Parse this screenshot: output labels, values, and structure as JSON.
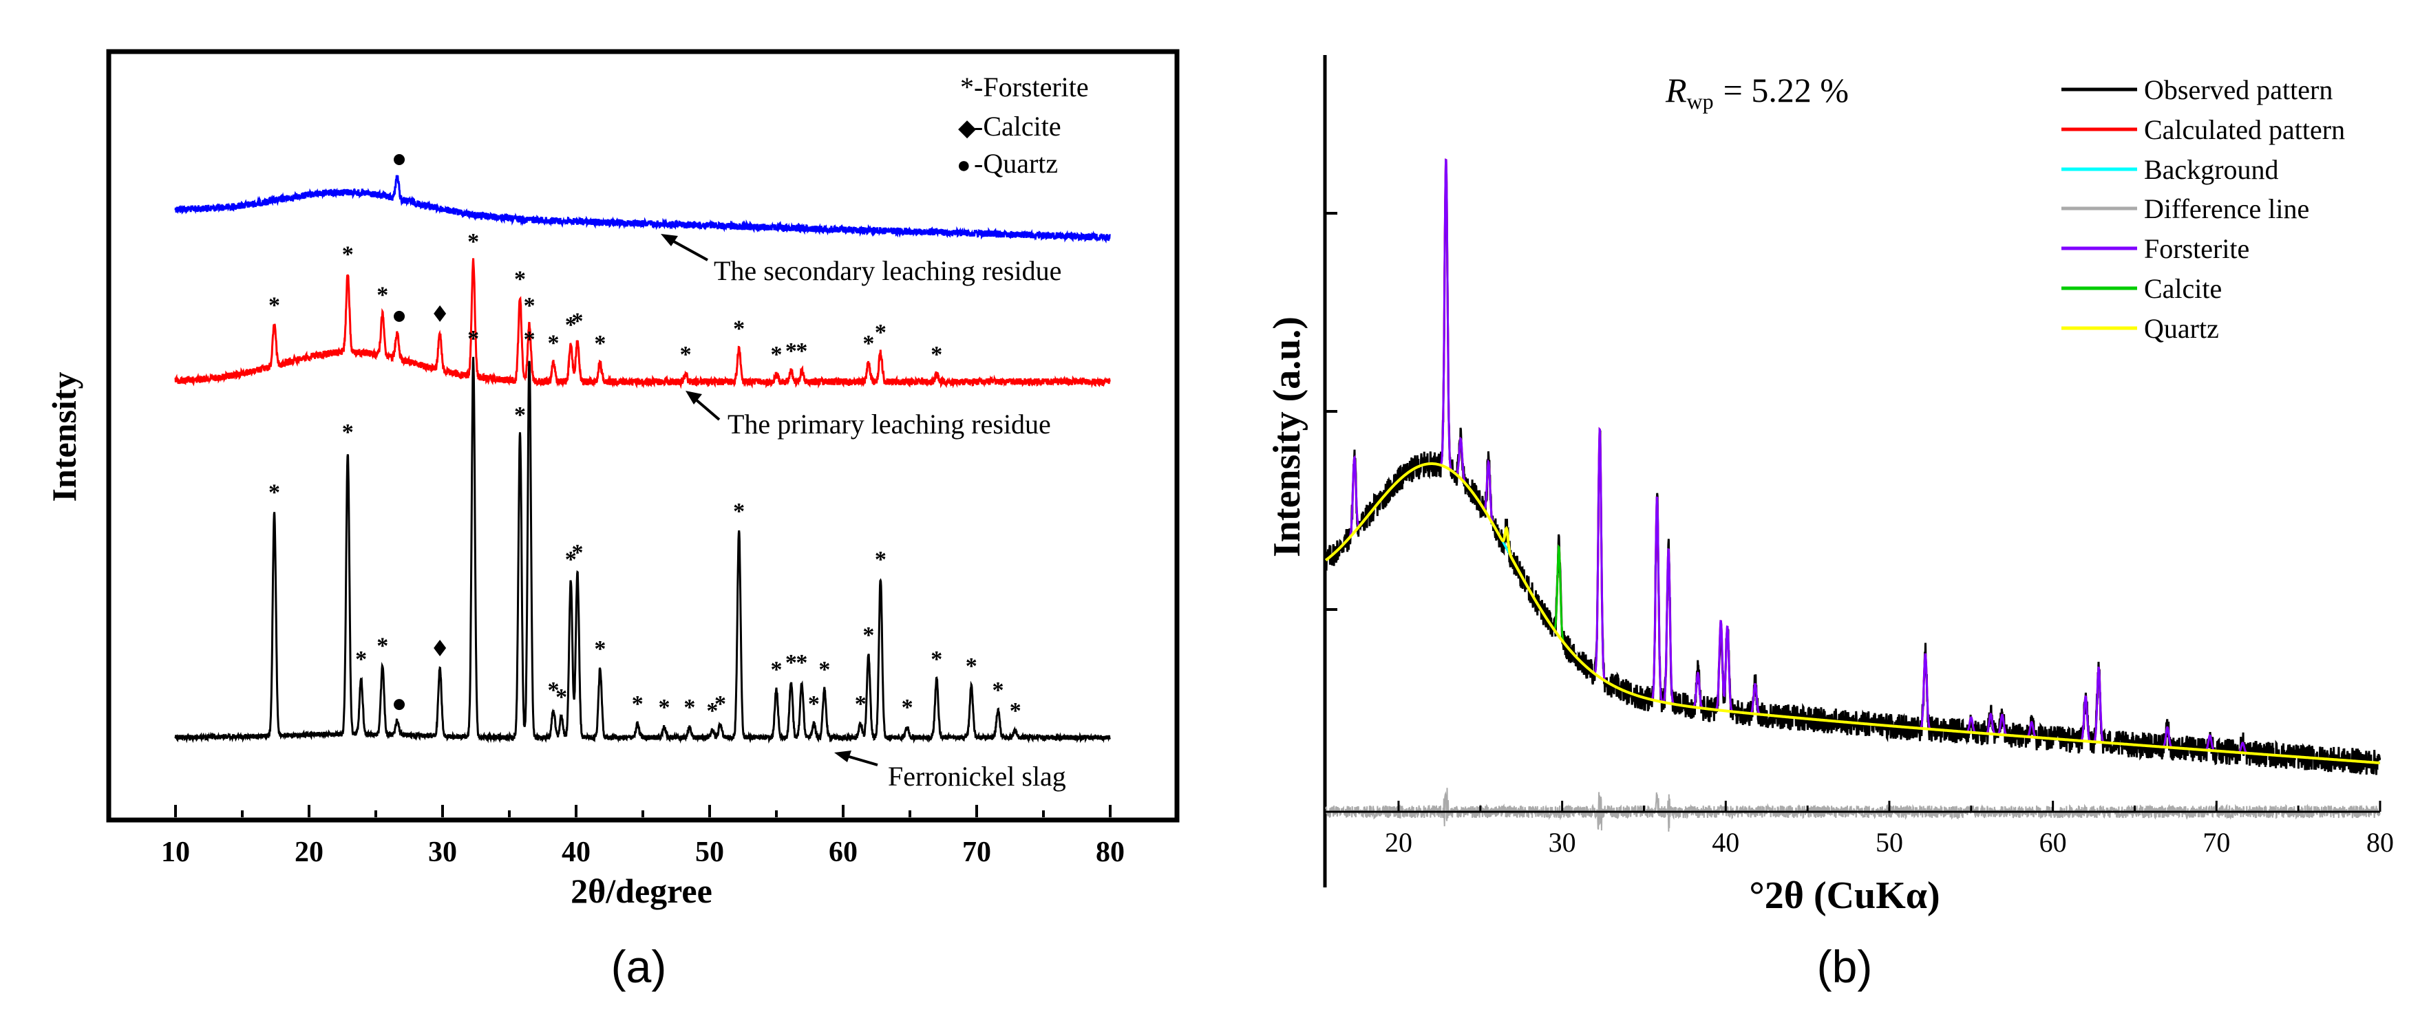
{
  "figure": {
    "panels": [
      "(a)",
      "(b)"
    ]
  },
  "chart_data": [
    {
      "type": "line",
      "id": "a",
      "title": "",
      "xlabel": "2θ/degree",
      "ylabel": "Intensity",
      "xlim": [
        5,
        85
      ],
      "x_ticks": [
        10,
        20,
        30,
        40,
        50,
        60,
        70,
        80
      ],
      "x_tick_labels": [
        "10",
        "20",
        "30",
        "40",
        "50",
        "60",
        "70",
        "80"
      ],
      "y_ticks_labeled": false,
      "legend": {
        "placement": "top-right",
        "entries": [
          {
            "symbol": "asterisk",
            "symbol_text": "*",
            "label": "-Forsterite"
          },
          {
            "symbol": "diamond",
            "symbol_text": "◆",
            "label": "-Calcite"
          },
          {
            "symbol": "dot",
            "symbol_text": "●",
            "label": "-Quartz"
          }
        ]
      },
      "series": [
        {
          "name": "The secondary leaching residue",
          "color": "#0000ff",
          "annotation": "The secondary leaching residue",
          "x_range": [
            10,
            80
          ],
          "hump": {
            "center": 23,
            "width": 5,
            "height": 0.3
          },
          "peaks": [
            {
              "x": 26.6,
              "h": 0.3,
              "marker": "dot"
            }
          ]
        },
        {
          "name": "The primary leaching residue",
          "color": "#ff0000",
          "annotation": "The primary leaching residue",
          "x_range": [
            10,
            80
          ],
          "hump": {
            "center": 23,
            "width": 5,
            "height": 0.4
          },
          "peaks": [
            {
              "x": 17.4,
              "h": 0.55,
              "marker": "asterisk"
            },
            {
              "x": 22.9,
              "h": 1.05,
              "marker": "asterisk"
            },
            {
              "x": 25.5,
              "h": 0.55,
              "marker": "asterisk"
            },
            {
              "x": 26.6,
              "h": 0.35,
              "marker": "dot"
            },
            {
              "x": 29.8,
              "h": 0.5,
              "marker": "diamond"
            },
            {
              "x": 32.3,
              "h": 1.55,
              "marker": "asterisk"
            },
            {
              "x": 35.8,
              "h": 1.1,
              "marker": "asterisk"
            },
            {
              "x": 36.5,
              "h": 0.75,
              "marker": "asterisk"
            },
            {
              "x": 38.3,
              "h": 0.25,
              "marker": "asterisk"
            },
            {
              "x": 39.6,
              "h": 0.5,
              "marker": "asterisk"
            },
            {
              "x": 40.1,
              "h": 0.55,
              "marker": "asterisk"
            },
            {
              "x": 41.8,
              "h": 0.25,
              "marker": "asterisk"
            },
            {
              "x": 48.2,
              "h": 0.1,
              "marker": "asterisk"
            },
            {
              "x": 52.2,
              "h": 0.45,
              "marker": "asterisk"
            },
            {
              "x": 55.0,
              "h": 0.1,
              "marker": "asterisk"
            },
            {
              "x": 56.1,
              "h": 0.15,
              "marker": "asterisk"
            },
            {
              "x": 56.9,
              "h": 0.15,
              "marker": "asterisk"
            },
            {
              "x": 61.9,
              "h": 0.25,
              "marker": "asterisk"
            },
            {
              "x": 62.8,
              "h": 0.4,
              "marker": "asterisk"
            },
            {
              "x": 67.0,
              "h": 0.1,
              "marker": "asterisk"
            }
          ]
        },
        {
          "name": "Ferronickel slag",
          "color": "#000000",
          "annotation": "Ferronickel slag",
          "x_range": [
            10,
            80
          ],
          "hump": {
            "center": 23,
            "width": 5,
            "height": 0.05
          },
          "peaks": [
            {
              "x": 17.4,
              "h": 3.25,
              "marker": "asterisk"
            },
            {
              "x": 22.9,
              "h": 4.1,
              "marker": "asterisk"
            },
            {
              "x": 23.9,
              "h": 0.8,
              "marker": "asterisk"
            },
            {
              "x": 25.5,
              "h": 1.0,
              "marker": "asterisk"
            },
            {
              "x": 26.6,
              "h": 0.2,
              "marker": "dot"
            },
            {
              "x": 29.8,
              "h": 1.0,
              "marker": "diamond"
            },
            {
              "x": 32.3,
              "h": 5.5,
              "marker": "asterisk"
            },
            {
              "x": 35.8,
              "h": 4.4,
              "marker": "asterisk"
            },
            {
              "x": 36.5,
              "h": 5.5,
              "marker": "asterisk"
            },
            {
              "x": 38.3,
              "h": 0.4,
              "marker": "asterisk"
            },
            {
              "x": 38.9,
              "h": 0.3,
              "marker": "asterisk"
            },
            {
              "x": 39.6,
              "h": 2.3,
              "marker": "asterisk"
            },
            {
              "x": 40.1,
              "h": 2.4,
              "marker": "asterisk"
            },
            {
              "x": 41.8,
              "h": 1.0,
              "marker": "asterisk"
            },
            {
              "x": 44.6,
              "h": 0.2,
              "marker": "asterisk"
            },
            {
              "x": 46.6,
              "h": 0.15,
              "marker": "asterisk"
            },
            {
              "x": 48.5,
              "h": 0.15,
              "marker": "asterisk"
            },
            {
              "x": 50.2,
              "h": 0.1,
              "marker": "asterisk"
            },
            {
              "x": 50.8,
              "h": 0.2,
              "marker": "asterisk"
            },
            {
              "x": 52.2,
              "h": 3.0,
              "marker": "asterisk"
            },
            {
              "x": 55.0,
              "h": 0.7,
              "marker": "asterisk"
            },
            {
              "x": 56.1,
              "h": 0.8,
              "marker": "asterisk"
            },
            {
              "x": 56.9,
              "h": 0.8,
              "marker": "asterisk"
            },
            {
              "x": 57.8,
              "h": 0.2,
              "marker": "asterisk"
            },
            {
              "x": 58.6,
              "h": 0.7,
              "marker": "asterisk"
            },
            {
              "x": 61.3,
              "h": 0.2,
              "marker": "asterisk"
            },
            {
              "x": 61.9,
              "h": 1.2,
              "marker": "asterisk"
            },
            {
              "x": 62.8,
              "h": 2.3,
              "marker": "asterisk"
            },
            {
              "x": 64.8,
              "h": 0.15,
              "marker": "asterisk"
            },
            {
              "x": 67.0,
              "h": 0.85,
              "marker": "asterisk"
            },
            {
              "x": 69.6,
              "h": 0.75,
              "marker": "asterisk"
            },
            {
              "x": 71.6,
              "h": 0.4,
              "marker": "asterisk"
            },
            {
              "x": 72.9,
              "h": 0.1,
              "marker": "asterisk"
            }
          ]
        }
      ]
    },
    {
      "type": "line",
      "id": "b",
      "title": "",
      "xlabel": "°2θ (CuKα)",
      "ylabel": "Intensity (a.u.)",
      "xlim": [
        15.5,
        80
      ],
      "x_ticks": [
        20,
        30,
        40,
        50,
        60,
        70,
        80
      ],
      "x_tick_labels": [
        "20",
        "30",
        "40",
        "50",
        "60",
        "70",
        "80"
      ],
      "y_ticks_labeled": false,
      "rwp": {
        "symbol": "R",
        "subscript": "wp",
        "value_text": "= 5.22 %"
      },
      "legend": {
        "placement": "top-right",
        "entries": [
          {
            "label": "Observed pattern",
            "color": "#000000"
          },
          {
            "label": "Calculated pattern",
            "color": "#ff0000"
          },
          {
            "label": "Background",
            "color": "#00ffff"
          },
          {
            "label": "Difference line",
            "color": "#aaaaaa"
          },
          {
            "label": "Forsterite",
            "color": "#8000ff"
          },
          {
            "label": "Calcite",
            "color": "#00cc00"
          },
          {
            "label": "Quartz",
            "color": "#ffff00"
          }
        ]
      },
      "background": {
        "description": "amorphous hump plus decaying baseline",
        "hump_center": 22.5,
        "hump_width": 4.5,
        "hump_height": 2.0,
        "start": 1.7,
        "end": 0.6
      },
      "forsterite_peaks": [
        {
          "x": 17.3,
          "h": 0.75
        },
        {
          "x": 22.9,
          "h": 3.1
        },
        {
          "x": 23.8,
          "h": 0.4
        },
        {
          "x": 25.5,
          "h": 0.55
        },
        {
          "x": 32.3,
          "h": 2.5
        },
        {
          "x": 35.8,
          "h": 2.05
        },
        {
          "x": 36.5,
          "h": 1.55
        },
        {
          "x": 38.3,
          "h": 0.35
        },
        {
          "x": 39.7,
          "h": 0.9
        },
        {
          "x": 40.1,
          "h": 0.85
        },
        {
          "x": 41.8,
          "h": 0.3
        },
        {
          "x": 52.2,
          "h": 0.75
        },
        {
          "x": 55.0,
          "h": 0.15
        },
        {
          "x": 56.2,
          "h": 0.2
        },
        {
          "x": 56.9,
          "h": 0.2
        },
        {
          "x": 58.7,
          "h": 0.15
        },
        {
          "x": 62.0,
          "h": 0.45
        },
        {
          "x": 62.8,
          "h": 0.75
        },
        {
          "x": 67.0,
          "h": 0.2
        },
        {
          "x": 69.6,
          "h": 0.15
        },
        {
          "x": 71.6,
          "h": 0.1
        }
      ],
      "calcite_peaks": [
        {
          "x": 29.8,
          "h": 0.9
        }
      ],
      "quartz_peaks": [
        {
          "x": 26.6,
          "h": 0.2
        }
      ]
    }
  ]
}
